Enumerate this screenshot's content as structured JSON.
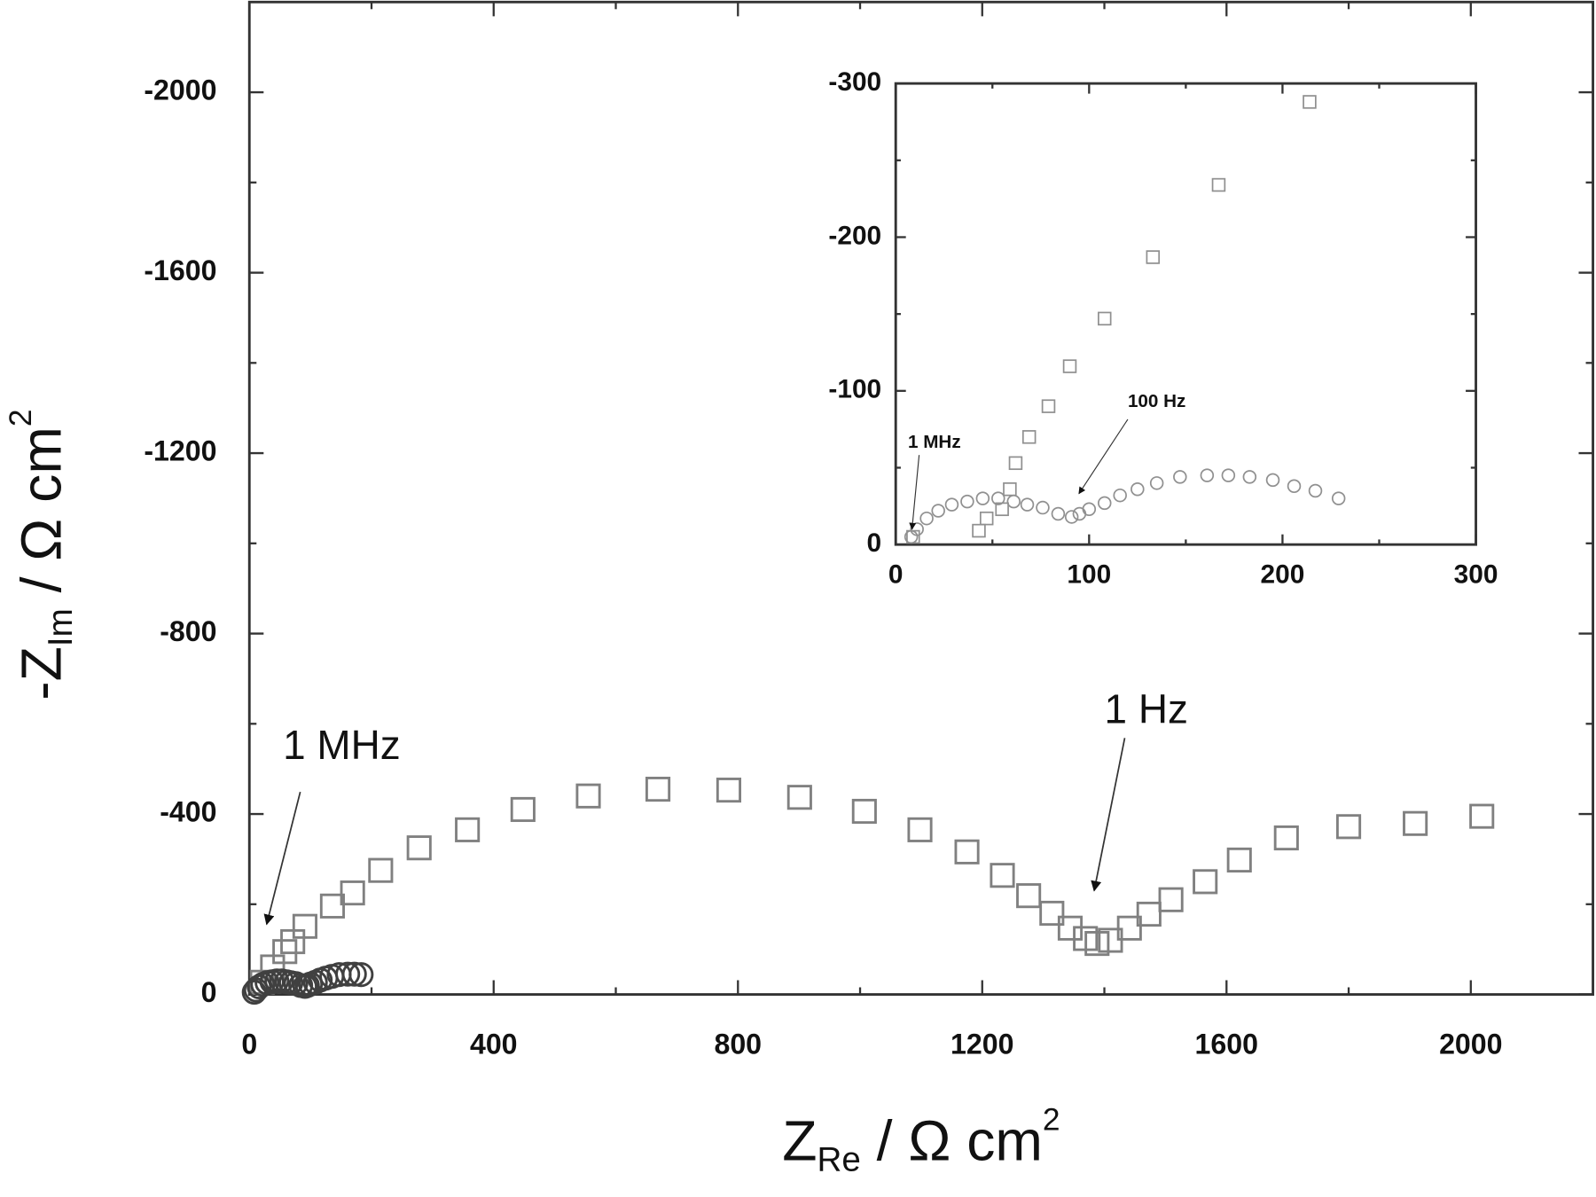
{
  "chart_data": [
    {
      "type": "scatter",
      "x_label": [
        "Z",
        "Re",
        " / Ω cm",
        "2"
      ],
      "y_label": [
        "-Z",
        "Im",
        " / Ω cm",
        "2"
      ],
      "xlim": [
        0,
        2200
      ],
      "ylim": [
        0,
        -2200
      ],
      "xticks": [
        0,
        400,
        800,
        1200,
        1600,
        2000
      ],
      "yticks": [
        0,
        -400,
        -800,
        -1200,
        -1600,
        -2000
      ],
      "series": [
        {
          "marker": "square",
          "color": "#808080",
          "x": [
            21,
            38,
            58,
            71,
            91,
            136,
            169,
            215,
            278,
            357,
            448,
            555,
            669,
            785,
            901,
            1007,
            1098,
            1175,
            1233,
            1276,
            1314,
            1344,
            1369,
            1388,
            1410,
            1441,
            1473,
            1509,
            1565,
            1621,
            1698,
            1800,
            1909,
            2018
          ],
          "values": [
            -27,
            -61,
            -95,
            -117,
            -151,
            -196,
            -225,
            -275,
            -325,
            -365,
            -410,
            -440,
            -455,
            -453,
            -437,
            -406,
            -365,
            -316,
            -264,
            -219,
            -180,
            -147,
            -124,
            -113,
            -120,
            -147,
            -178,
            -210,
            -250,
            -298,
            -347,
            -372,
            -379,
            -395
          ]
        },
        {
          "marker": "circle",
          "color": "#404040",
          "x": [
            8,
            11,
            16,
            22,
            29,
            37,
            45,
            53,
            61,
            68,
            76,
            84,
            91,
            95,
            100,
            108,
            116,
            125,
            135,
            147,
            161,
            172,
            183
          ],
          "values": [
            -5,
            -10,
            -17,
            -22,
            -26,
            -28,
            -30,
            -30,
            -28,
            -26,
            -24,
            -20,
            -18,
            -20,
            -23,
            -27,
            -32,
            -36,
            -40,
            -44,
            -45,
            -45,
            -44
          ]
        }
      ],
      "annotations": [
        {
          "text": "1 MHz"
        },
        {
          "text": "1 Hz"
        }
      ]
    },
    {
      "type": "scatter",
      "xlim": [
        0,
        300
      ],
      "ylim": [
        0,
        -300
      ],
      "xticks": [
        0,
        100,
        200,
        300
      ],
      "yticks": [
        0,
        -100,
        -200,
        -300
      ],
      "series": [
        {
          "marker": "square",
          "color": "#909090",
          "x": [
            9,
            43,
            47,
            55,
            59,
            62,
            69,
            79,
            90,
            108,
            133,
            167,
            214
          ],
          "values": [
            -5,
            -9,
            -17,
            -23,
            -36,
            -53,
            -70,
            -90,
            -116,
            -147,
            -187,
            -234,
            -288
          ]
        },
        {
          "marker": "circle",
          "color": "#909090",
          "x": [
            8,
            11,
            16,
            22,
            29,
            37,
            45,
            53,
            61,
            68,
            76,
            84,
            91,
            95,
            100,
            108,
            116,
            125,
            135,
            147,
            161,
            172,
            183,
            195,
            206,
            217,
            229
          ],
          "values": [
            -5,
            -10,
            -17,
            -22,
            -26,
            -28,
            -30,
            -30,
            -28,
            -26,
            -24,
            -20,
            -18,
            -20,
            -23,
            -27,
            -32,
            -36,
            -40,
            -44,
            -45,
            -45,
            -44,
            -42,
            -38,
            -35,
            -30
          ]
        }
      ],
      "annotations": [
        {
          "text": "1 MHz"
        },
        {
          "text": "100 Hz"
        }
      ]
    }
  ]
}
